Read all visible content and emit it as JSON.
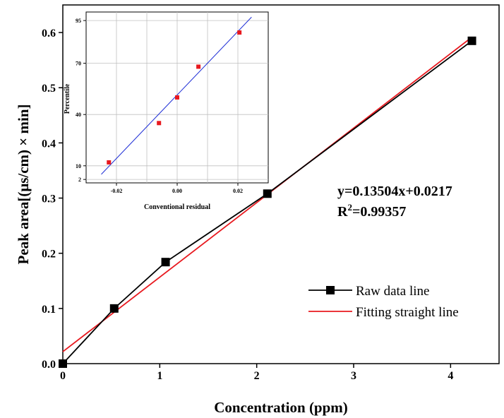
{
  "chart_data": [
    {
      "type": "line",
      "xlabel": "Concentration (ppm)",
      "ylabel": "Peak area[(μs/cm) × min]",
      "xlim": [
        0,
        4.5
      ],
      "ylim": [
        0,
        0.65
      ],
      "xticks": [
        "0",
        "1",
        "2",
        "3",
        "4"
      ],
      "yticks": [
        "0.0",
        "0.1",
        "0.2",
        "0.3",
        "0.4",
        "0.5",
        "0.6"
      ],
      "xtick_values": [
        0,
        1,
        2,
        3,
        4
      ],
      "ytick_values": [
        0,
        0.1,
        0.2,
        0.3,
        0.4,
        0.5,
        0.6
      ],
      "series": [
        {
          "name": "Raw data line",
          "color": "#000000",
          "marker": "square",
          "x": [
            0,
            0.53,
            1.06,
            2.11,
            4.22
          ],
          "y": [
            0,
            0.1,
            0.184,
            0.308,
            0.585
          ]
        },
        {
          "name": "Fitting straight line",
          "color": "#e8191f",
          "marker": "none",
          "x": [
            0,
            4.22
          ],
          "y": [
            0.0217,
            0.5916
          ]
        }
      ],
      "legend_position": "bottom-right",
      "annotations": {
        "equation": "y=0.13504x+0.0217",
        "r2_prefix": "R",
        "r2_sup": "2",
        "r2_value": "=0.99357"
      }
    },
    {
      "type": "scatter",
      "xlabel": "Conventional residual",
      "ylabel": "Percentile",
      "xlim": [
        -0.03,
        0.03
      ],
      "ylim": [
        0,
        100
      ],
      "xticks": [
        "-0.02",
        "0.00",
        "0.02"
      ],
      "yticks": [
        "2",
        "10",
        "40",
        "70",
        "95"
      ],
      "xtick_values": [
        -0.02,
        0,
        0.02
      ],
      "ytick_values": [
        2,
        10,
        40,
        70,
        95
      ],
      "grid": true,
      "points": {
        "color": "#e8191f",
        "x": [
          -0.0225,
          -0.006,
          0.0,
          0.007,
          0.0205
        ],
        "y": [
          12,
          35,
          50,
          68,
          88
        ]
      },
      "reference_line": {
        "color": "#1f2fd6",
        "x": [
          -0.025,
          0.0245
        ],
        "y": [
          5,
          97
        ]
      }
    }
  ]
}
